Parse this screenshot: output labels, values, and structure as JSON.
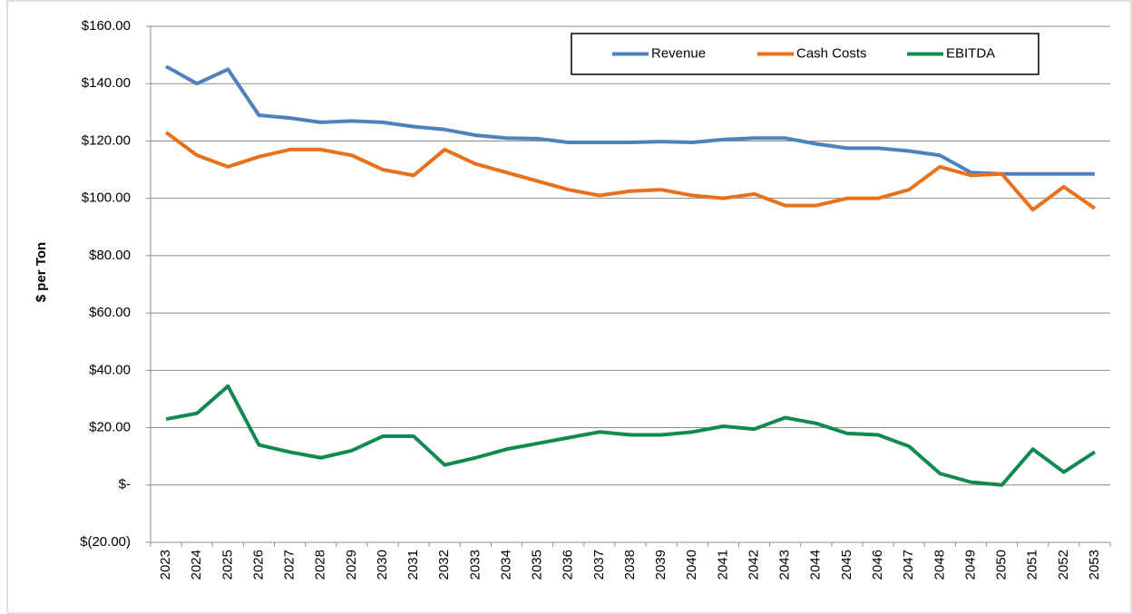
{
  "chart_data": {
    "type": "line",
    "y_label": "$ per Ton",
    "categories": [
      "2023",
      "2024",
      "2025",
      "2026",
      "2027",
      "2028",
      "2029",
      "2030",
      "2031",
      "2032",
      "2033",
      "2034",
      "2035",
      "2036",
      "2037",
      "2038",
      "2039",
      "2040",
      "2041",
      "2042",
      "2043",
      "2044",
      "2045",
      "2046",
      "2047",
      "2048",
      "2049",
      "2050",
      "2051",
      "2052",
      "2053"
    ],
    "series": [
      {
        "name": "Revenue",
        "color": "#4f81bd",
        "values": [
          146,
          140,
          145,
          129,
          128,
          126.5,
          127,
          126.5,
          125,
          124,
          122,
          121,
          120.8,
          119.5,
          119.5,
          119.5,
          119.8,
          119.5,
          120.5,
          121,
          121,
          119,
          117.5,
          117.5,
          116.5,
          115,
          109,
          108.5,
          108.5,
          108.5,
          108.5
        ]
      },
      {
        "name": "Cash Costs",
        "color": "#e8711c",
        "values": [
          123,
          115,
          111,
          114.5,
          117,
          117,
          115,
          110,
          108,
          117,
          112,
          109,
          106,
          103,
          101,
          102.5,
          103,
          101,
          100,
          101.5,
          97.5,
          97.5,
          100,
          100,
          103,
          111,
          108,
          108.5,
          96,
          104,
          96.5
        ]
      },
      {
        "name": "EBITDA",
        "color": "#118a4f",
        "values": [
          23,
          25,
          34.5,
          14,
          11.5,
          9.5,
          12,
          17,
          17,
          7,
          9.5,
          12.5,
          14.5,
          16.5,
          18.5,
          17.5,
          17.5,
          18.5,
          20.5,
          19.5,
          23.5,
          21.5,
          18,
          17.5,
          13.5,
          4,
          1,
          0,
          12.5,
          4.5,
          11.5
        ]
      }
    ],
    "ylim": [
      -20,
      160
    ],
    "yticks": [
      {
        "value": -20,
        "label": "$(20.00)"
      },
      {
        "value": 0,
        "label": "$-"
      },
      {
        "value": 20,
        "label": "$20.00"
      },
      {
        "value": 40,
        "label": "$40.00"
      },
      {
        "value": 60,
        "label": "$60.00"
      },
      {
        "value": 80,
        "label": "$80.00"
      },
      {
        "value": 100,
        "label": "$100.00"
      },
      {
        "value": 120,
        "label": "$120.00"
      },
      {
        "value": 140,
        "label": "$140.00"
      },
      {
        "value": 160,
        "label": "$160.00"
      }
    ],
    "grid": true,
    "legend": "top"
  }
}
